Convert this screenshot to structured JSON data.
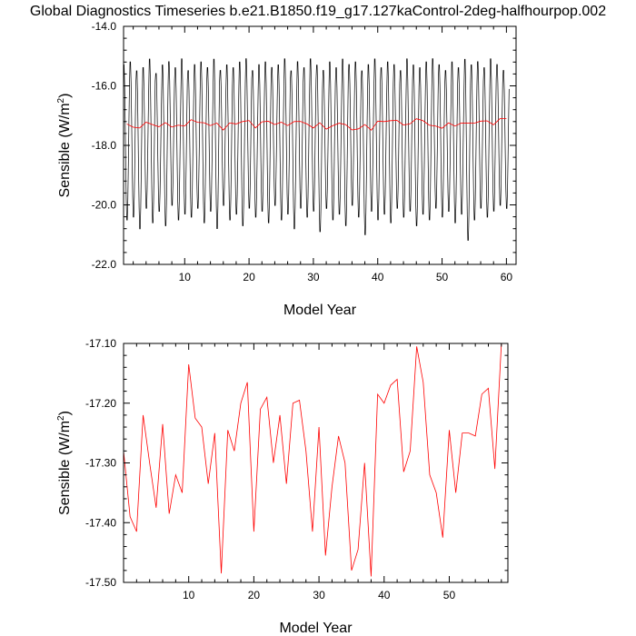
{
  "title": "Global Diagnostics Timeseries b.e21.B1850.f19_g17.127kaControl-2deg-halfhourpop.002",
  "colors": {
    "monthly": "#000000",
    "annual": "#ff0000",
    "axis": "#000000"
  },
  "chart_data": [
    {
      "type": "line",
      "name": "top-panel",
      "xlabel": "Model Year",
      "ylabel_main": "Sensible (W/m",
      "ylabel_sup": "2",
      "ylabel_end": ")",
      "xlim": [
        0.5,
        61.5
      ],
      "ylim": [
        -22.0,
        -14.0
      ],
      "xticks": [
        10,
        20,
        30,
        40,
        50,
        60
      ],
      "yticks": [
        -22.0,
        -20.0,
        -18.0,
        -16.0,
        -14.0
      ],
      "xtick_labels": [
        "10",
        "20",
        "30",
        "40",
        "50",
        "60"
      ],
      "ytick_labels": [
        "-22.0",
        "-20.0",
        "-18.0",
        "-16.0",
        "-14.0"
      ],
      "series": [
        {
          "color": "#000000",
          "note": "monthly cycle per model year: [peak (least negative), trough (most negative)]",
          "years": [
            1,
            2,
            3,
            4,
            5,
            6,
            7,
            8,
            9,
            10,
            11,
            12,
            13,
            14,
            15,
            16,
            17,
            18,
            19,
            20,
            21,
            22,
            23,
            24,
            25,
            26,
            27,
            28,
            29,
            30,
            31,
            32,
            33,
            34,
            35,
            36,
            37,
            38,
            39,
            40,
            41,
            42,
            43,
            44,
            45,
            46,
            47,
            48,
            49,
            50,
            51,
            52,
            53,
            54,
            55,
            56,
            57,
            58,
            59,
            60
          ],
          "peaks": [
            -15.2,
            -15.1,
            -15.4,
            -15.3,
            -15.0,
            -15.5,
            -15.2,
            -15.1,
            -15.3,
            -15.0,
            -15.4,
            -15.2,
            -15.1,
            -15.3,
            -15.0,
            -15.4,
            -15.2,
            -15.3,
            -15.1,
            -15.0,
            -15.4,
            -15.2,
            -15.1,
            -15.3,
            -15.2,
            -15.0,
            -15.4,
            -15.1,
            -15.3,
            -15.0,
            -15.2,
            -15.4,
            -15.1,
            -15.3,
            -15.0,
            -15.2,
            -15.1,
            -15.4,
            -15.2,
            -15.0,
            -15.3,
            -15.1,
            -15.2,
            -15.4,
            -15.0,
            -15.2,
            -15.3,
            -15.1,
            -15.0,
            -15.2,
            -15.4,
            -15.1,
            -15.3,
            -15.0,
            -15.2,
            -15.1,
            -15.3,
            -15.0,
            -15.2,
            -15.4
          ],
          "troughs": [
            -20.6,
            -20.5,
            -20.9,
            -20.2,
            -20.7,
            -20.3,
            -20.8,
            -20.1,
            -20.6,
            -20.4,
            -20.5,
            -20.2,
            -20.7,
            -20.3,
            -20.9,
            -20.1,
            -20.6,
            -20.4,
            -20.8,
            -20.2,
            -20.5,
            -20.3,
            -20.7,
            -20.1,
            -20.6,
            -20.4,
            -20.9,
            -20.2,
            -20.5,
            -20.3,
            -21.0,
            -20.2,
            -20.6,
            -20.4,
            -20.8,
            -20.1,
            -20.5,
            -21.1,
            -20.3,
            -20.6,
            -20.4,
            -20.7,
            -20.2,
            -20.5,
            -20.3,
            -20.8,
            -20.4,
            -20.6,
            -20.2,
            -20.5,
            -20.3,
            -20.7,
            -20.4,
            -21.3,
            -20.6,
            -20.2,
            -20.5,
            -20.3,
            -20.1,
            -20.2
          ]
        },
        {
          "color": "#ff0000",
          "note": "annual mean",
          "x": [
            1,
            2,
            3,
            4,
            5,
            6,
            7,
            8,
            9,
            10,
            11,
            12,
            13,
            14,
            15,
            16,
            17,
            18,
            19,
            20,
            21,
            22,
            23,
            24,
            25,
            26,
            27,
            28,
            29,
            30,
            31,
            32,
            33,
            34,
            35,
            36,
            37,
            38,
            39,
            40,
            41,
            42,
            43,
            44,
            45,
            46,
            47,
            48,
            49,
            50,
            51,
            52,
            53,
            54,
            55,
            56,
            57,
            58,
            59,
            60
          ],
          "y": [
            -17.28,
            -17.39,
            -17.415,
            -17.22,
            -17.3,
            -17.375,
            -17.235,
            -17.385,
            -17.32,
            -17.35,
            -17.135,
            -17.225,
            -17.24,
            -17.335,
            -17.25,
            -17.485,
            -17.245,
            -17.28,
            -17.2,
            -17.165,
            -17.415,
            -17.21,
            -17.19,
            -17.3,
            -17.22,
            -17.335,
            -17.2,
            -17.195,
            -17.28,
            -17.415,
            -17.24,
            -17.455,
            -17.34,
            -17.255,
            -17.3,
            -17.48,
            -17.445,
            -17.3,
            -17.49,
            -17.185,
            -17.2,
            -17.17,
            -17.16,
            -17.315,
            -17.28,
            -17.105,
            -17.165,
            -17.32,
            -17.35,
            -17.425,
            -17.245,
            -17.35,
            -17.25,
            -17.25,
            -17.255,
            -17.185,
            -17.175,
            -17.31,
            -17.1,
            -17.1
          ]
        }
      ]
    },
    {
      "type": "line",
      "name": "bottom-panel",
      "xlabel": "Model Year",
      "ylabel_main": "Sensible (W/m",
      "ylabel_sup": "2",
      "ylabel_end": ")",
      "xlim": [
        0.0,
        59.0
      ],
      "ylim": [
        -17.5,
        -17.1
      ],
      "xticks": [
        10,
        20,
        30,
        40,
        50
      ],
      "yticks": [
        -17.5,
        -17.4,
        -17.3,
        -17.2,
        -17.1
      ],
      "xtick_labels": [
        "10",
        "20",
        "30",
        "40",
        "50"
      ],
      "ytick_labels": [
        "-17.50",
        "-17.40",
        "-17.30",
        "-17.20",
        "-17.10"
      ],
      "series": [
        {
          "color": "#ff0000",
          "x": [
            0,
            1,
            2,
            3,
            4,
            5,
            6,
            7,
            8,
            9,
            10,
            11,
            12,
            13,
            14,
            15,
            16,
            17,
            18,
            19,
            20,
            21,
            22,
            23,
            24,
            25,
            26,
            27,
            28,
            29,
            30,
            31,
            32,
            33,
            34,
            35,
            36,
            37,
            38,
            39,
            40,
            41,
            42,
            43,
            44,
            45,
            46,
            47,
            48,
            49,
            50,
            51,
            52,
            53,
            54,
            55,
            56,
            57,
            58,
            59
          ],
          "y": [
            -17.28,
            -17.39,
            -17.415,
            -17.22,
            -17.3,
            -17.375,
            -17.235,
            -17.385,
            -17.32,
            -17.35,
            -17.135,
            -17.225,
            -17.24,
            -17.335,
            -17.25,
            -17.485,
            -17.245,
            -17.28,
            -17.2,
            -17.165,
            -17.415,
            -17.21,
            -17.19,
            -17.3,
            -17.22,
            -17.335,
            -17.2,
            -17.195,
            -17.28,
            -17.415,
            -17.24,
            -17.455,
            -17.34,
            -17.255,
            -17.3,
            -17.48,
            -17.445,
            -17.3,
            -17.49,
            -17.185,
            -17.2,
            -17.17,
            -17.16,
            -17.315,
            -17.28,
            -17.105,
            -17.165,
            -17.32,
            -17.35,
            -17.425,
            -17.245,
            -17.35,
            -17.25,
            -17.25,
            -17.255,
            -17.185,
            -17.175,
            -17.31,
            -17.1,
            -17.1
          ]
        }
      ]
    }
  ]
}
